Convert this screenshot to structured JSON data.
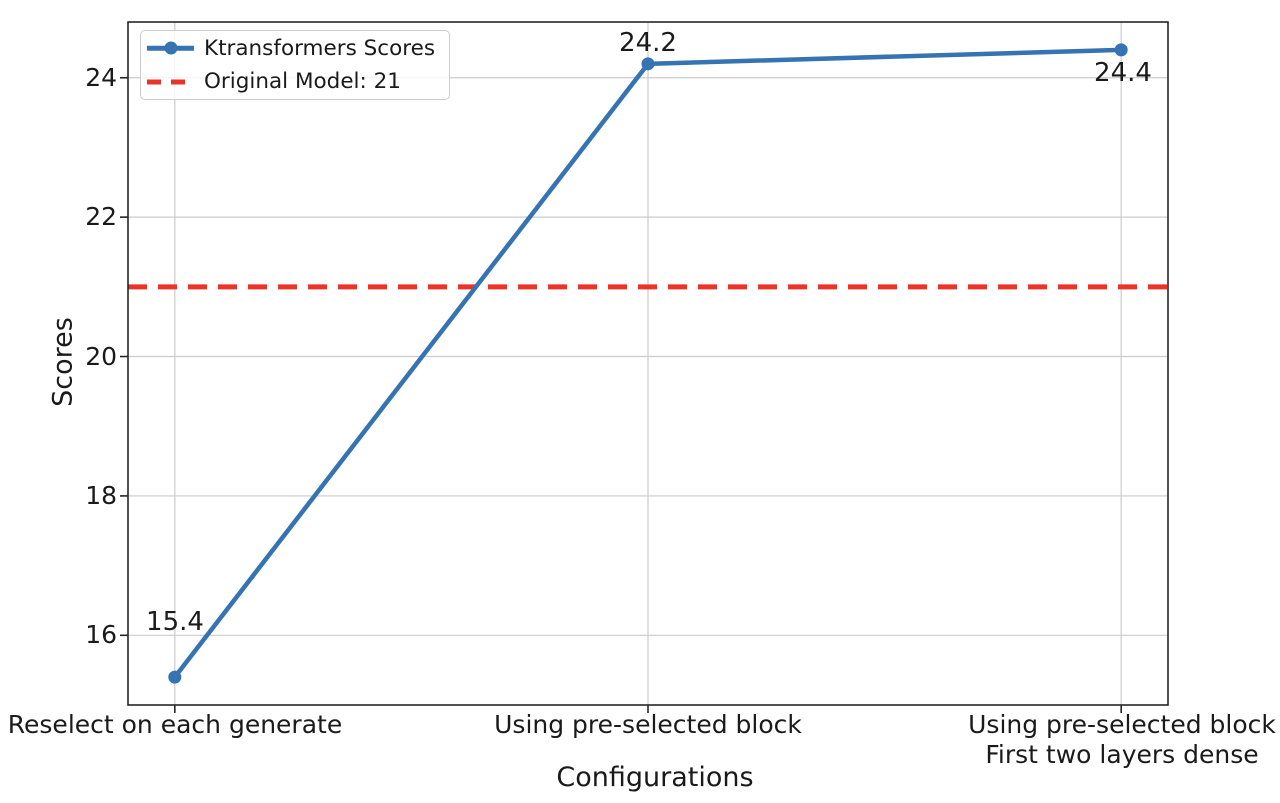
{
  "chart_data": {
    "type": "line",
    "xlabel": "Configurations",
    "ylabel": "Scores",
    "categories": [
      "Reselect on each generate",
      "Using pre-selected block",
      "Using pre-selected block\nFirst two layers dense"
    ],
    "category_display": [
      [
        "Reselect on each generate"
      ],
      [
        "Using pre-selected block"
      ],
      [
        "Using pre-selected block",
        "First two layers dense"
      ]
    ],
    "series": [
      {
        "name": "Ktransformers Scores",
        "values": [
          15.4,
          24.2,
          24.4
        ],
        "color": "#3573b2",
        "marker": "circle"
      }
    ],
    "reference_line": {
      "label": "Original Model: 21",
      "value": 21,
      "color": "#ec3328",
      "style": "dashed"
    },
    "annotations": [
      "15.4",
      "24.2",
      "24.4"
    ],
    "yticks": [
      16,
      18,
      20,
      22,
      24
    ],
    "ytick_labels": [
      "16",
      "18",
      "20",
      "22",
      "24"
    ],
    "ylim": [
      15.0,
      24.8
    ],
    "grid": true,
    "grid_color": "#cbcbcb",
    "spine_color": "#262626",
    "legend_position": "upper left"
  }
}
